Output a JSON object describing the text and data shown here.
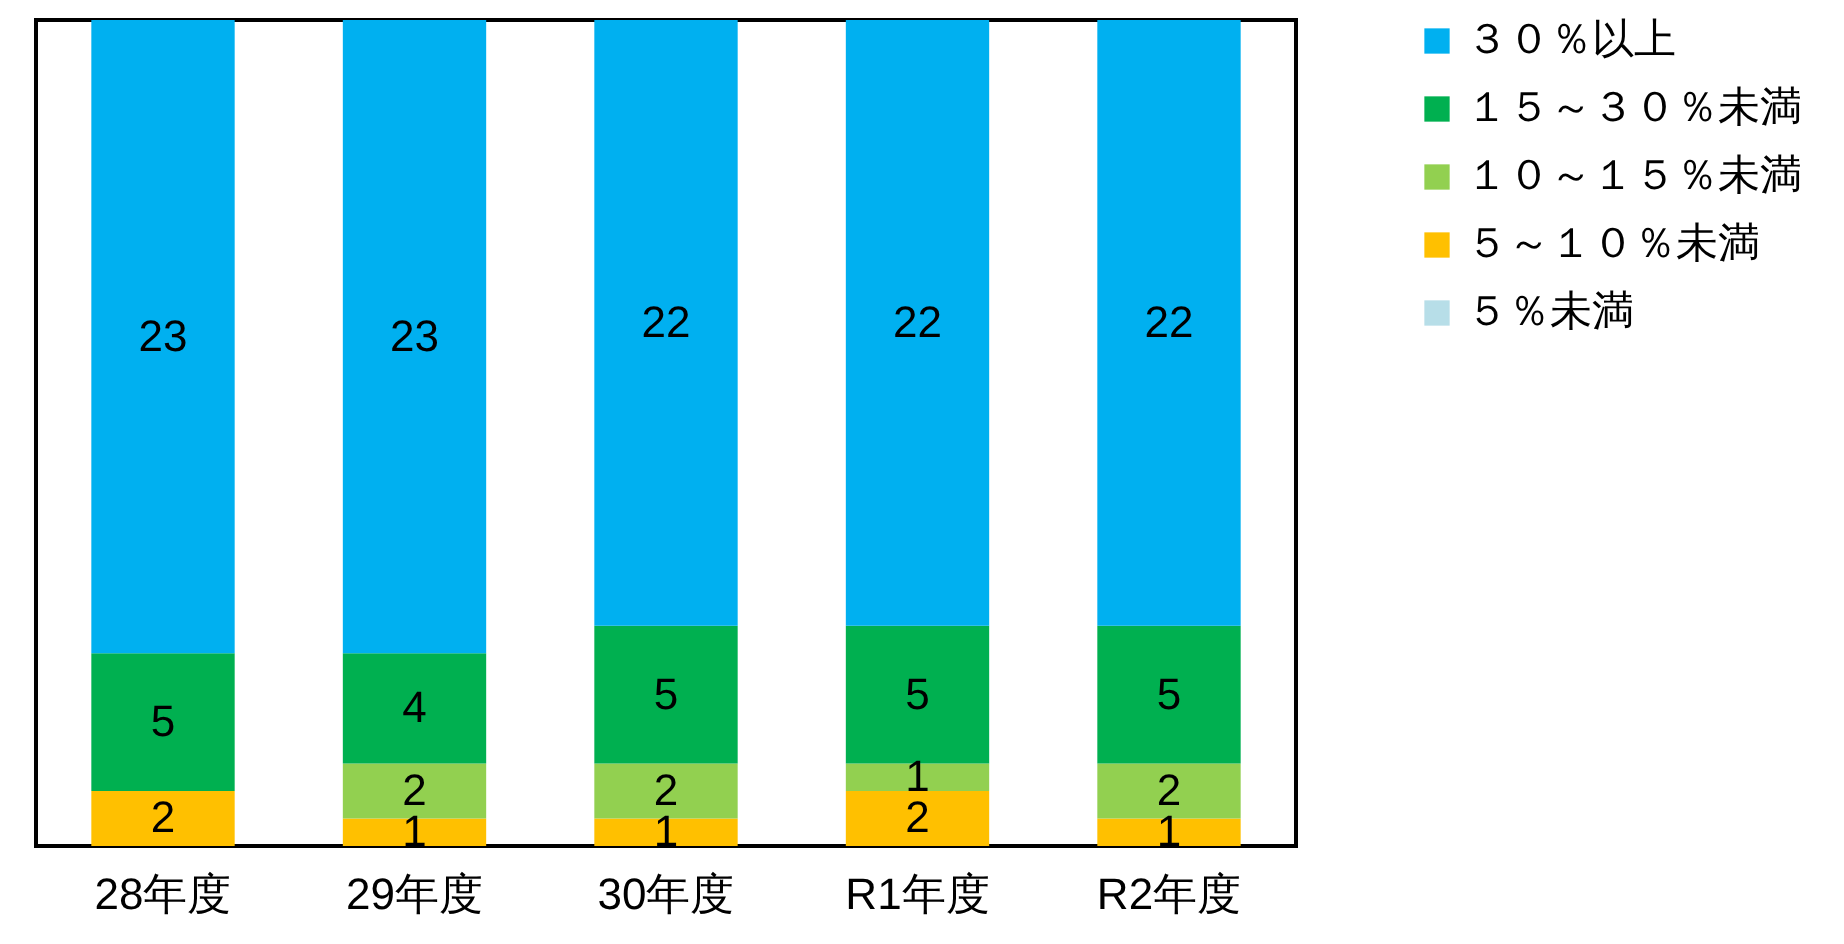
{
  "chart_data": {
    "type": "bar",
    "stacked": true,
    "categories": [
      "28年度",
      "29年度",
      "30年度",
      "R1年度",
      "R2年度"
    ],
    "series": [
      {
        "name": "５％未満",
        "color": "#b7dee8",
        "values": [
          null,
          null,
          null,
          null,
          null
        ]
      },
      {
        "name": "５～１０％未満",
        "color": "#ffc000",
        "values": [
          2,
          1,
          1,
          2,
          1
        ]
      },
      {
        "name": "１０～１５％未満",
        "color": "#92d050",
        "values": [
          null,
          2,
          2,
          1,
          2
        ]
      },
      {
        "name": "１５～３０％未満",
        "color": "#00b050",
        "values": [
          5,
          4,
          5,
          5,
          5
        ]
      },
      {
        "name": "３０％以上",
        "color": "#00b0f0",
        "values": [
          23,
          23,
          22,
          22,
          22
        ]
      }
    ],
    "data_labels": true,
    "legend": "right",
    "tick_labels": "x",
    "grid": false
  }
}
